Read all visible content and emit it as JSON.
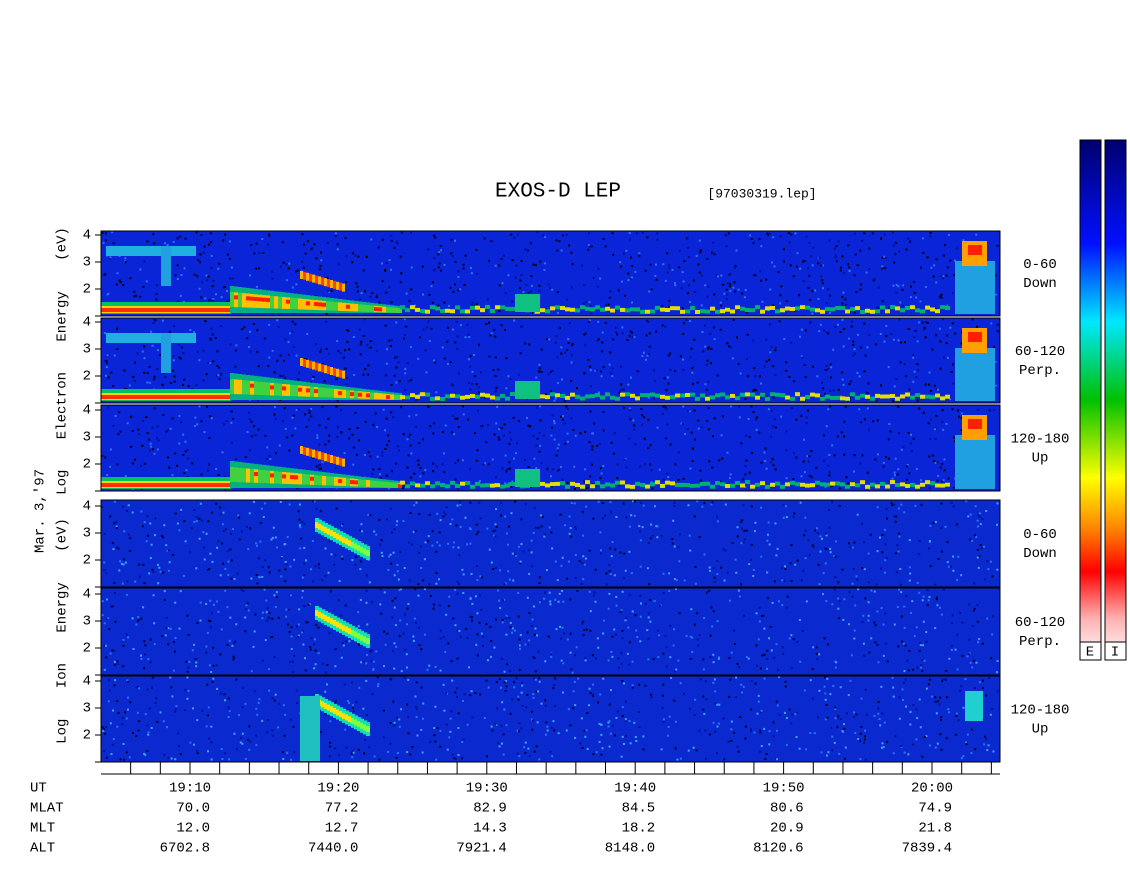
{
  "header": {
    "title": "EXOS-D LEP",
    "file": "[97030319.lep]"
  },
  "date": "Mar. 3,'97",
  "electron": {
    "axis_label": "Log Electron Energy (eV)",
    "panels": [
      {
        "angle": "0-60",
        "direction": "Down"
      },
      {
        "angle": "60-120",
        "direction": "Perp."
      },
      {
        "angle": "120-180",
        "direction": "Up"
      }
    ]
  },
  "ion": {
    "axis_label": "Log Ion Energy (eV)",
    "panels": [
      {
        "angle": "0-60",
        "direction": "Down"
      },
      {
        "angle": "60-120",
        "direction": "Perp."
      },
      {
        "angle": "120-180",
        "direction": "Up"
      }
    ]
  },
  "yticks": [
    2,
    3,
    4
  ],
  "colorbar": {
    "labels": [
      "E",
      "I"
    ]
  },
  "orbit": {
    "row_labels": [
      "UT",
      "MLAT",
      "MLT",
      "ALT"
    ],
    "columns": [
      [
        "19:10",
        "70.0",
        "12.0",
        "6702.8"
      ],
      [
        "19:20",
        "77.2",
        "12.7",
        "7440.0"
      ],
      [
        "19:30",
        "82.9",
        "14.3",
        "7921.4"
      ],
      [
        "19:40",
        "84.5",
        "18.2",
        "8148.0"
      ],
      [
        "19:50",
        "80.6",
        "20.9",
        "8120.6"
      ],
      [
        "20:00",
        "74.9",
        "21.8",
        "7839.4"
      ]
    ]
  }
}
